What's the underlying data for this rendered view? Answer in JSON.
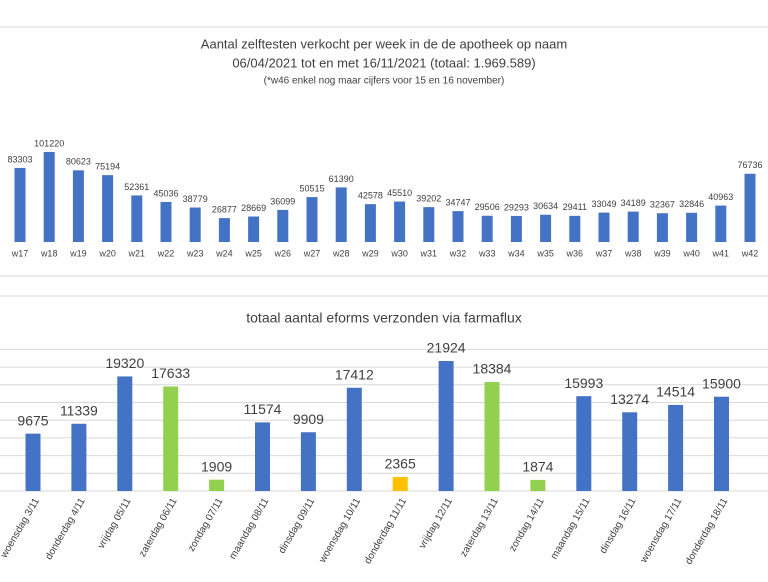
{
  "chart_data": [
    {
      "type": "bar",
      "title": "Aantal zelftesten verkocht per week in de de apotheek op naam",
      "subtitle": "06/04/2021 tot en met 16/11/2021 (totaal: 1.969.589)",
      "note": "(*w46 enkel nog maar cijfers voor 15 en 16 november)",
      "categories": [
        "w17",
        "w18",
        "w19",
        "w20",
        "w21",
        "w22",
        "w23",
        "w24",
        "w25",
        "w26",
        "w27",
        "w28",
        "w29",
        "w30",
        "w31",
        "w32",
        "w33",
        "w34",
        "w35",
        "w36",
        "w37",
        "w38",
        "w39",
        "w40",
        "w41",
        "w42"
      ],
      "values": [
        83303,
        101220,
        80623,
        75194,
        52361,
        45036,
        38779,
        26877,
        28669,
        36099,
        50515,
        61390,
        42578,
        45510,
        39202,
        34747,
        29506,
        29293,
        30634,
        29411,
        33049,
        34189,
        32367,
        32846,
        40963,
        76736
      ],
      "color": "#4472c4"
    },
    {
      "type": "bar",
      "title": "totaal aantal eforms verzonden via farmaflux",
      "categories": [
        "woensdag 3/11",
        "donderdag 4/11",
        "vrijdag 05/11",
        "zaterdag 06/11",
        "zondag 07/11",
        "maandag 08/11",
        "dinsdag 09/11",
        "woensdag 10/11",
        "donderdag 11/11",
        "vrijdag 12/11",
        "zaterdag 13/11",
        "zondag 14/11",
        "maandag 15/11",
        "dinsdag 16/11",
        "woensdag 17/11",
        "donderdag 18/11"
      ],
      "values": [
        9675,
        11339,
        19320,
        17633,
        1909,
        11574,
        9909,
        17412,
        2365,
        21924,
        18384,
        1874,
        15993,
        13274,
        14514,
        15900
      ],
      "colors": [
        "#4472c4",
        "#4472c4",
        "#4472c4",
        "#92d050",
        "#92d050",
        "#4472c4",
        "#4472c4",
        "#4472c4",
        "#ffc000",
        "#4472c4",
        "#92d050",
        "#92d050",
        "#4472c4",
        "#4472c4",
        "#4472c4",
        "#4472c4"
      ],
      "grid": true
    }
  ]
}
